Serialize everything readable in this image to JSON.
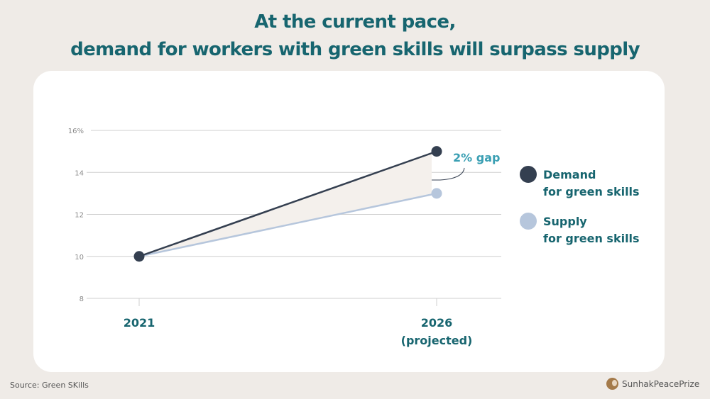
{
  "header": {
    "title_line1": "At the current pace,",
    "title_line2": "demand for workers with green skills will surpass supply"
  },
  "footer": {
    "source": "Source: Green SKills",
    "brand": "SunhakPeacePrize"
  },
  "colors": {
    "title": "#17656f",
    "demand": "#343f50",
    "supply": "#b6c6dc",
    "gap_fill": "#f4f0ec",
    "annotation": "#3a9fb3",
    "background": "#efebe7"
  },
  "chart_data": {
    "type": "line",
    "title": "At the current pace, demand for workers with green skills will surpass supply",
    "x": [
      "2021",
      "2026"
    ],
    "x_tick_labels": [
      {
        "line1": "2021",
        "line2": ""
      },
      {
        "line1": "2026",
        "line2": "(projected)"
      }
    ],
    "ylim": [
      8,
      16
    ],
    "y_ticks": [
      8,
      10,
      12,
      14,
      16
    ],
    "y_tick_labels": [
      "8",
      "10",
      "12",
      "14",
      "16%"
    ],
    "grid": true,
    "series": [
      {
        "name": "Demand for green skills",
        "legend_line1": "Demand",
        "legend_line2": "for green skills",
        "values": [
          10,
          15
        ]
      },
      {
        "name": "Supply for green skills",
        "legend_line1": "Supply",
        "legend_line2": "for green skills",
        "values": [
          10,
          13
        ]
      }
    ],
    "annotation": {
      "text": "2% gap",
      "x": "2026"
    },
    "legend_position": "right"
  }
}
